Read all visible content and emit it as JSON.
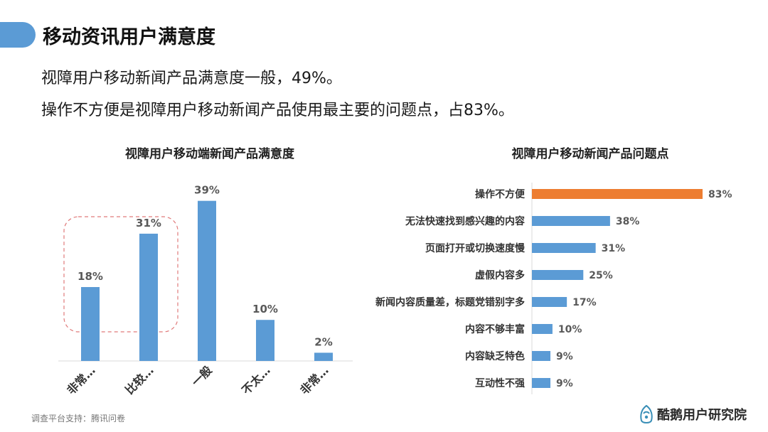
{
  "header": {
    "title": "移动资讯用户满意度"
  },
  "summary": {
    "line1": "视障用户移动新闻产品满意度一般，49%。",
    "line2": "操作不方便是视障用户移动新闻产品使用最主要的问题点，占83%。"
  },
  "chart_data": [
    {
      "type": "bar",
      "title": "视障用户移动端新闻产品满意度",
      "categories": [
        "非常…",
        "比较…",
        "一般",
        "不太…",
        "非常…"
      ],
      "values": [
        18,
        31,
        39,
        10,
        2
      ],
      "data_labels": [
        "18%",
        "31%",
        "39%",
        "10%",
        "2%"
      ],
      "unit": "%",
      "ylim": [
        0,
        45
      ],
      "grid": false,
      "bar_color": "#5b9bd5",
      "highlight": {
        "categories": [
          "非常…",
          "比较…"
        ],
        "style": "dashed-rounded-box",
        "color": "#e07a7a"
      }
    },
    {
      "type": "bar",
      "orientation": "horizontal",
      "title": "视障用户移动新闻产品问题点",
      "categories": [
        "操作不方便",
        "无法快速找到感兴趣的内容",
        "页面打开或切换速度慢",
        "虚假内容多",
        "新闻内容质量差，标题党错别字多",
        "内容不够丰富",
        "内容缺乏特色",
        "互动性不强"
      ],
      "values": [
        83,
        38,
        31,
        25,
        17,
        10,
        9,
        9
      ],
      "data_labels": [
        "83%",
        "38%",
        "31%",
        "25%",
        "17%",
        "10%",
        "9%",
        "9%"
      ],
      "unit": "%",
      "xlim": [
        0,
        100
      ],
      "grid": false,
      "bar_color": "#5b9bd5",
      "highlight_color": "#ed7d31",
      "highlight_index": 0
    }
  ],
  "footer": {
    "source": "调查平台支持：腾讯问卷",
    "brand": "酷鹅用户研究院"
  },
  "colors": {
    "accent": "#5b9bd5",
    "highlight": "#ed7d31"
  }
}
